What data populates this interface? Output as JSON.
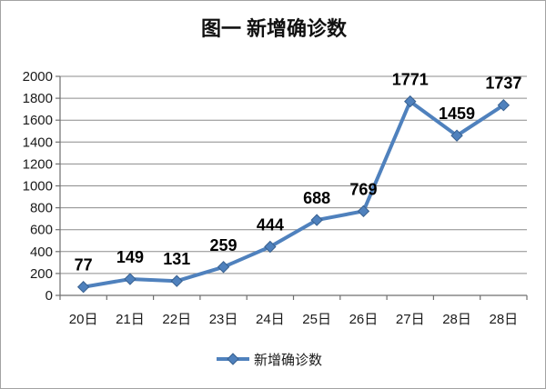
{
  "chart_data": {
    "type": "line",
    "title": "图一 新增确诊数",
    "categories": [
      "20日",
      "21日",
      "22日",
      "23日",
      "24日",
      "25日",
      "26日",
      "27日",
      "28日",
      "28日"
    ],
    "series": [
      {
        "name": "新增确诊数",
        "values": [
          77,
          149,
          131,
          259,
          444,
          688,
          769,
          1771,
          1459,
          1737
        ]
      }
    ],
    "xlabel": "",
    "ylabel": "",
    "ylim": [
      0,
      2000
    ],
    "yticks": [
      0,
      200,
      400,
      600,
      800,
      1000,
      1200,
      1400,
      1600,
      1800,
      2000
    ],
    "grid": true,
    "legend_position": "bottom",
    "colors": {
      "line": "#4F81BD",
      "marker_fill": "#4F81BD",
      "marker_edge": "#38608F",
      "grid": "#8c8c8c",
      "axis": "#6f6f6f",
      "text": "#1a1a1a",
      "data_label": "#000000"
    }
  }
}
